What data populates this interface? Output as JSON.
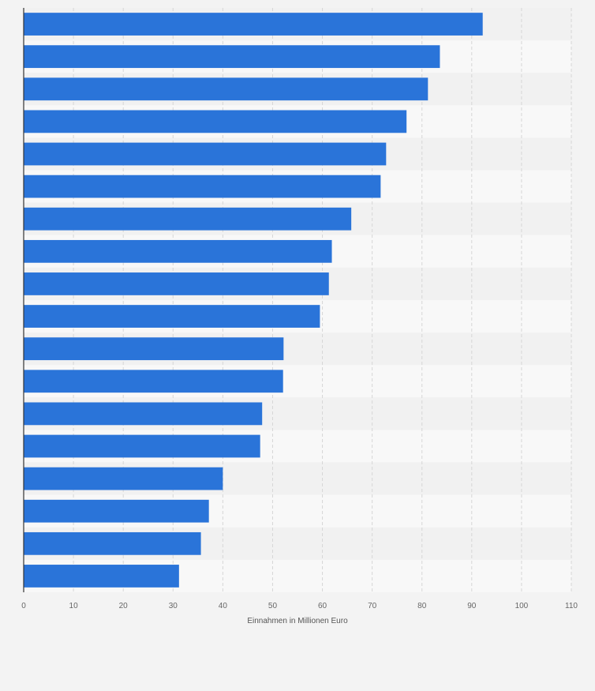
{
  "chart_data": {
    "type": "bar",
    "orientation": "horizontal",
    "xlabel": "Einnahmen in Millionen Euro",
    "xlim": [
      0,
      110
    ],
    "xticks": [
      0,
      10,
      20,
      30,
      40,
      50,
      60,
      70,
      80,
      90,
      100,
      110
    ],
    "values": [
      92.2,
      83.6,
      81.2,
      76.9,
      72.8,
      71.7,
      65.8,
      61.9,
      61.3,
      59.5,
      52.2,
      52.1,
      47.9,
      47.5,
      40.0,
      37.2,
      35.6,
      31.2
    ],
    "grid": true,
    "bar_color": "#2a74d9"
  }
}
